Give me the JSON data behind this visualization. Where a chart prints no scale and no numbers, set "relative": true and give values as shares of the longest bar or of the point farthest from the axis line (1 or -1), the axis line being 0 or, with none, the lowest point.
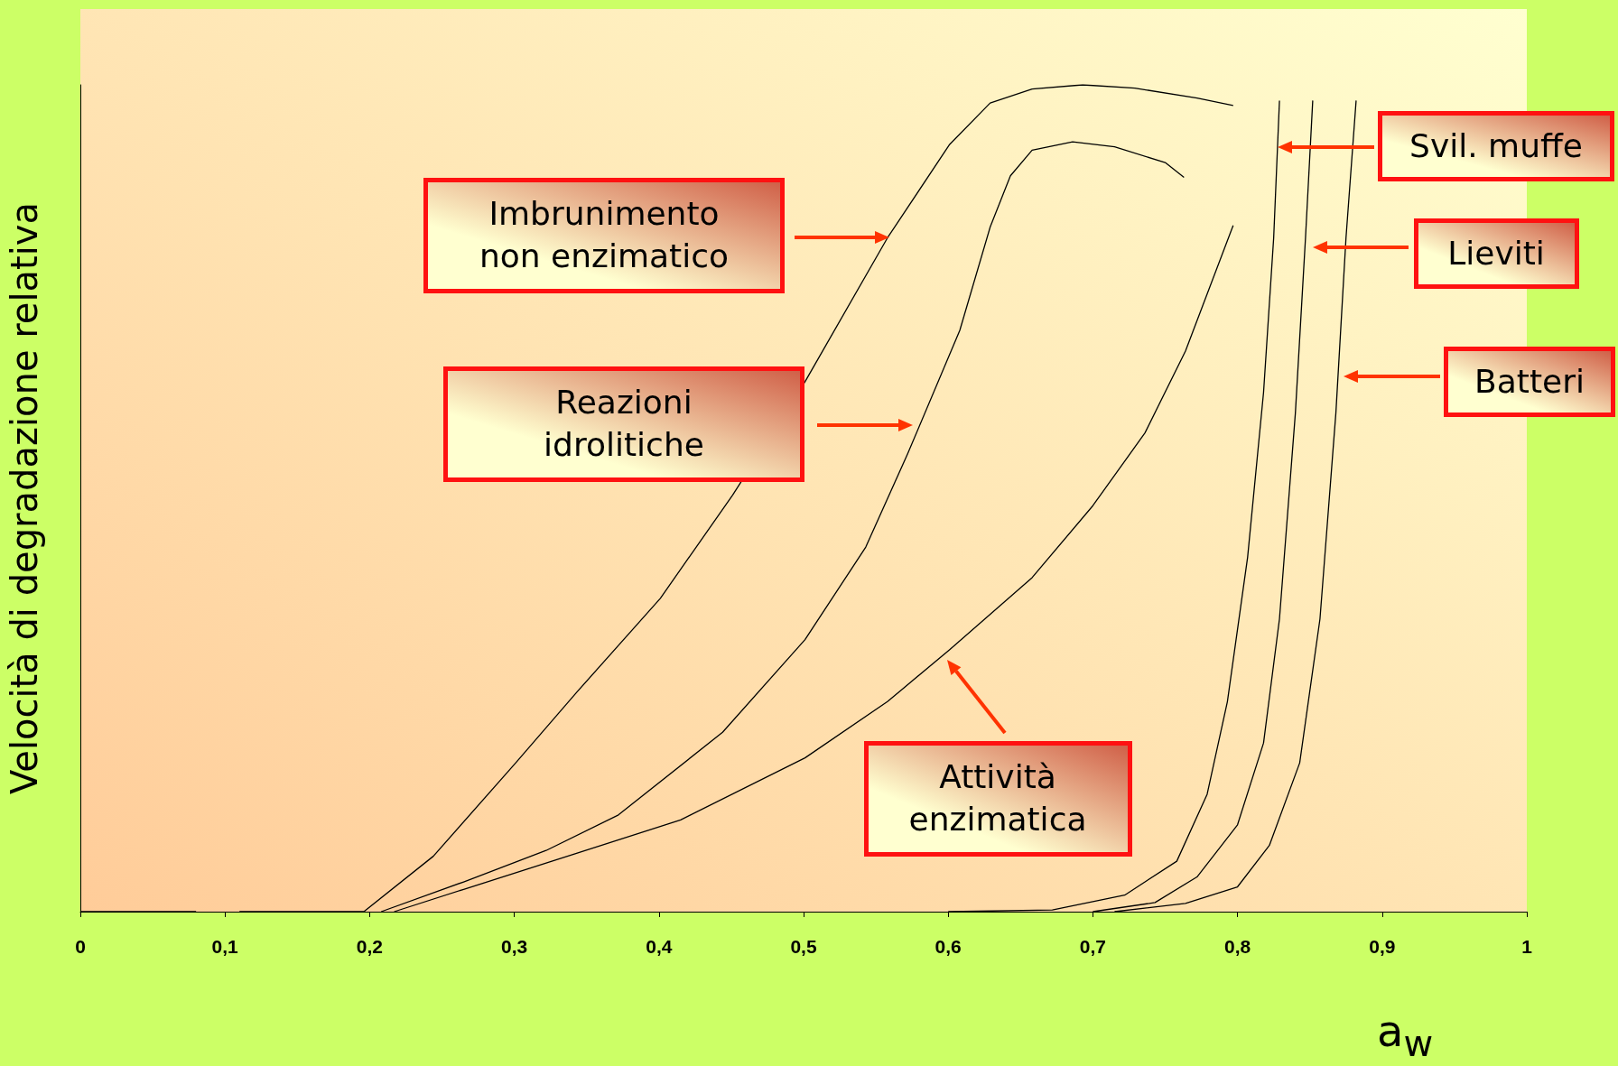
{
  "chart_data": {
    "type": "line",
    "relative": true,
    "xlabel": "a$_{w}$",
    "ylabel": "Velocità di degradazione relativa",
    "xlim": [
      0,
      1
    ],
    "xticks": [
      0,
      {
        "value": 0.1,
        "label": "0,1"
      },
      {
        "value": 0.2,
        "label": "0,2"
      },
      {
        "value": 0.3,
        "label": "0,3"
      },
      {
        "value": 0.4,
        "label": "0,4"
      },
      {
        "value": 0.5,
        "label": "0,5"
      },
      {
        "value": 0.6,
        "label": "0,6"
      },
      {
        "value": 0.7,
        "label": "0,7"
      },
      {
        "value": 0.8,
        "label": "0,8"
      },
      {
        "value": 0.9,
        "label": "0,9"
      },
      1
    ],
    "grid": false,
    "marker": "none",
    "line_style": "solid",
    "series": [
      {
        "color": "#000000",
        "x": [
          0,
          0.08,
          0.095,
          0.11,
          0.196,
          0.244,
          0.301,
          0.344,
          0.401,
          0.451,
          0.501,
          0.558,
          0.601,
          0.629,
          0.658,
          0.693,
          0.729,
          0.772,
          0.797
        ],
        "values": [
          0,
          0,
          null,
          0,
          0,
          0.067,
          0.18,
          0.267,
          0.379,
          0.504,
          0.641,
          0.815,
          0.928,
          0.978,
          0.995,
          1,
          0.996,
          0.984,
          0.975
        ]
      },
      {
        "color": "#000000",
        "x": [
          0.208,
          0.265,
          0.322,
          0.372,
          0.444,
          0.501,
          0.543,
          0.572,
          0.608,
          0.629,
          0.643,
          0.658,
          0.686,
          0.715,
          0.75,
          0.763
        ],
        "values": [
          0,
          0.036,
          0.074,
          0.117,
          0.217,
          0.329,
          0.441,
          0.554,
          0.703,
          0.828,
          0.89,
          0.921,
          0.931,
          0.925,
          0.906,
          0.888
        ]
      },
      {
        "color": "#000000",
        "x": [
          0.217,
          0.265,
          0.344,
          0.415,
          0.501,
          0.558,
          0.601,
          0.658,
          0.7,
          0.736,
          0.764,
          0.797
        ],
        "values": [
          0,
          0.027,
          0.071,
          0.111,
          0.186,
          0.254,
          0.317,
          0.404,
          0.491,
          0.579,
          0.678,
          0.83
        ]
      },
      {
        "color": "#000000",
        "x": [
          0.6,
          0.672,
          0.722,
          0.758,
          0.779,
          0.793,
          0.807,
          0.818,
          0.825,
          0.829
        ],
        "values": [
          0,
          0.002,
          0.02,
          0.061,
          0.142,
          0.254,
          0.429,
          0.628,
          0.815,
          0.981
        ]
      },
      {
        "color": "#000000",
        "x": [
          0.7,
          0.743,
          0.772,
          0.8,
          0.818,
          0.829,
          0.84,
          0.847,
          0.852
        ],
        "values": [
          0,
          0.011,
          0.042,
          0.105,
          0.204,
          0.354,
          0.603,
          0.815,
          0.981
        ]
      },
      {
        "color": "#000000",
        "x": [
          0.715,
          0.764,
          0.8,
          0.822,
          0.843,
          0.857,
          0.868,
          0.875,
          0.882
        ],
        "values": [
          0,
          0.01,
          0.03,
          0.08,
          0.18,
          0.354,
          0.603,
          0.815,
          0.981
        ]
      }
    ],
    "annotations": [
      "Imbrunimento\nnon enzimatico",
      "Reazioni\nidrolitiche",
      "Attività\nenzimatica",
      "Svil. muffe",
      "Lieviti",
      "Batteri"
    ]
  }
}
